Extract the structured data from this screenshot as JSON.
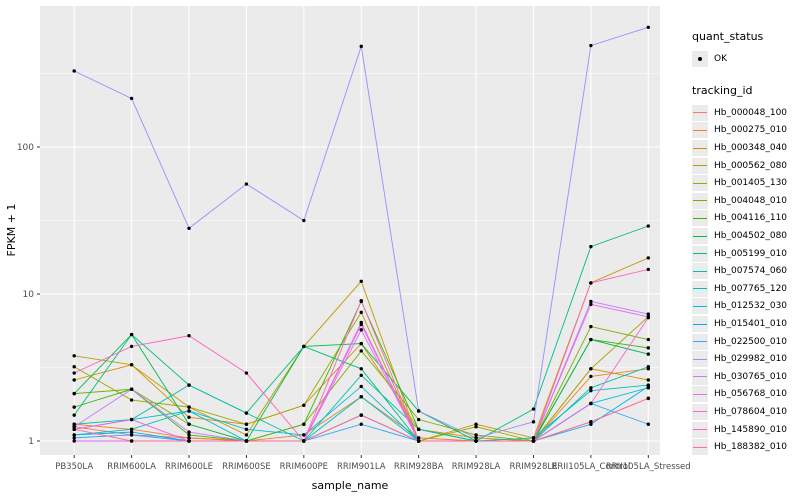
{
  "figure": {
    "background": "#FFFFFF",
    "panel_background": "#EBEBEB",
    "gridline_color": "#FFFFFF",
    "tick_label_color": "#4D4D4D",
    "axis_title_color": "#000000",
    "point_color": "#000000"
  },
  "axes": {
    "x_title": "sample_name",
    "y_title": "FPKM + 1",
    "y_ticks": [
      "1",
      "10",
      "100"
    ],
    "y_scale": "log10"
  },
  "legend": {
    "quant_status_title": "quant_status",
    "ok_label": "OK",
    "tracking_title": "tracking_id"
  },
  "chart_data": {
    "type": "line",
    "title": "",
    "xlabel": "sample_name",
    "ylabel": "FPKM + 1",
    "y_scale": "log10",
    "ylim": [
      1,
      700
    ],
    "grid": true,
    "legend_position": "right",
    "x_categories": [
      "PB350LA",
      "RRIM600LA",
      "RRIM600LE",
      "RRIM600SE",
      "RRIM600PE",
      "RRIM901LA",
      "RRIM928BA",
      "RRIM928LA",
      "RRIM928LE",
      "RRII105LA_Control",
      "RRII105LA_Stressed"
    ],
    "series": [
      {
        "name": "Hb_000048_100",
        "color": "#F8766D",
        "values": [
          1.25,
          1.1,
          1.05,
          1.0,
          1.0,
          1.5,
          1.0,
          1.0,
          1.0,
          1.35,
          1.95
        ]
      },
      {
        "name": "Hb_000275_010",
        "color": "#EA8331",
        "values": [
          1.3,
          1.2,
          1.05,
          1.0,
          1.1,
          2.0,
          1.05,
          1.0,
          1.0,
          2.75,
          3.1
        ]
      },
      {
        "name": "Hb_000348_040",
        "color": "#D89000",
        "values": [
          2.6,
          3.3,
          1.45,
          1.3,
          1.75,
          4.6,
          1.2,
          1.05,
          1.0,
          3.1,
          2.6
        ]
      },
      {
        "name": "Hb_000562_080",
        "color": "#C09B00",
        "values": [
          3.8,
          3.3,
          1.7,
          1.1,
          4.4,
          12.2,
          1.0,
          1.3,
          1.05,
          11.9,
          17.6
        ]
      },
      {
        "name": "Hb_001405_130",
        "color": "#A3A500",
        "values": [
          3.2,
          1.9,
          1.7,
          1.3,
          1.75,
          7.5,
          1.0,
          1.25,
          1.0,
          3.1,
          7.0
        ]
      },
      {
        "name": "Hb_004048_010",
        "color": "#7CAE00",
        "values": [
          2.1,
          2.25,
          1.3,
          1.0,
          1.3,
          4.1,
          1.4,
          1.1,
          1.0,
          6.0,
          4.9
        ]
      },
      {
        "name": "Hb_004116_110",
        "color": "#39B600",
        "values": [
          1.7,
          2.25,
          1.1,
          1.0,
          1.3,
          8.9,
          1.2,
          1.0,
          1.0,
          4.9,
          4.3
        ]
      },
      {
        "name": "Hb_004502_080",
        "color": "#00BB4E",
        "values": [
          2.1,
          5.3,
          1.3,
          1.0,
          4.4,
          4.6,
          1.6,
          1.0,
          1.0,
          4.9,
          3.9
        ]
      },
      {
        "name": "Hb_005199_010",
        "color": "#00BF7D",
        "values": [
          1.5,
          5.3,
          2.4,
          1.55,
          4.4,
          3.1,
          1.0,
          1.0,
          1.65,
          21.0,
          29.0
        ]
      },
      {
        "name": "Hb_007574_060",
        "color": "#00C0AF",
        "values": [
          1.3,
          1.4,
          2.4,
          1.55,
          1.0,
          2.8,
          1.2,
          1.0,
          1.0,
          2.3,
          3.2
        ]
      },
      {
        "name": "Hb_007765_120",
        "color": "#00BFC4",
        "values": [
          1.1,
          1.2,
          1.6,
          1.0,
          1.0,
          2.0,
          1.0,
          1.0,
          1.05,
          2.2,
          2.4
        ]
      },
      {
        "name": "Hb_012532_030",
        "color": "#00BAE0",
        "values": [
          1.2,
          1.4,
          1.6,
          1.2,
          1.1,
          2.35,
          1.0,
          1.0,
          1.0,
          1.8,
          2.3
        ]
      },
      {
        "name": "Hb_015401_010",
        "color": "#00B0F6",
        "values": [
          1.1,
          1.15,
          1.0,
          1.0,
          1.0,
          1.5,
          1.0,
          1.0,
          1.0,
          1.3,
          2.35
        ]
      },
      {
        "name": "Hb_022500_010",
        "color": "#35A2FF",
        "values": [
          1.05,
          1.1,
          1.0,
          1.0,
          1.0,
          1.3,
          1.0,
          1.0,
          1.0,
          1.8,
          1.3
        ]
      },
      {
        "name": "Hb_029982_010",
        "color": "#9590FF",
        "values": [
          329,
          214,
          28,
          56,
          31.6,
          484,
          1.6,
          1.05,
          1.35,
          490,
          652
        ]
      },
      {
        "name": "Hb_030765_010",
        "color": "#C77CFF",
        "values": [
          1.25,
          2.25,
          1.15,
          1.0,
          1.0,
          6.2,
          1.0,
          1.0,
          1.0,
          8.9,
          7.3
        ]
      },
      {
        "name": "Hb_056768_010",
        "color": "#E76BF3",
        "values": [
          1.0,
          1.0,
          1.0,
          1.0,
          1.0,
          5.7,
          1.0,
          1.0,
          1.0,
          8.5,
          7.0
        ]
      },
      {
        "name": "Hb_078604_010",
        "color": "#FA62DB",
        "values": [
          1.2,
          1.4,
          1.0,
          1.0,
          1.0,
          6.4,
          1.0,
          1.0,
          1.0,
          1.8,
          6.9
        ]
      },
      {
        "name": "Hb_145890_010",
        "color": "#FF62BC",
        "values": [
          2.9,
          4.4,
          5.2,
          2.9,
          1.0,
          9.0,
          1.0,
          1.0,
          1.0,
          11.9,
          14.7
        ]
      },
      {
        "name": "Hb_188382_010",
        "color": "#FF6A98",
        "values": [
          1.2,
          1.0,
          1.0,
          1.0,
          1.0,
          1.5,
          1.0,
          1.0,
          1.0,
          1.35,
          1.95
        ]
      }
    ]
  }
}
